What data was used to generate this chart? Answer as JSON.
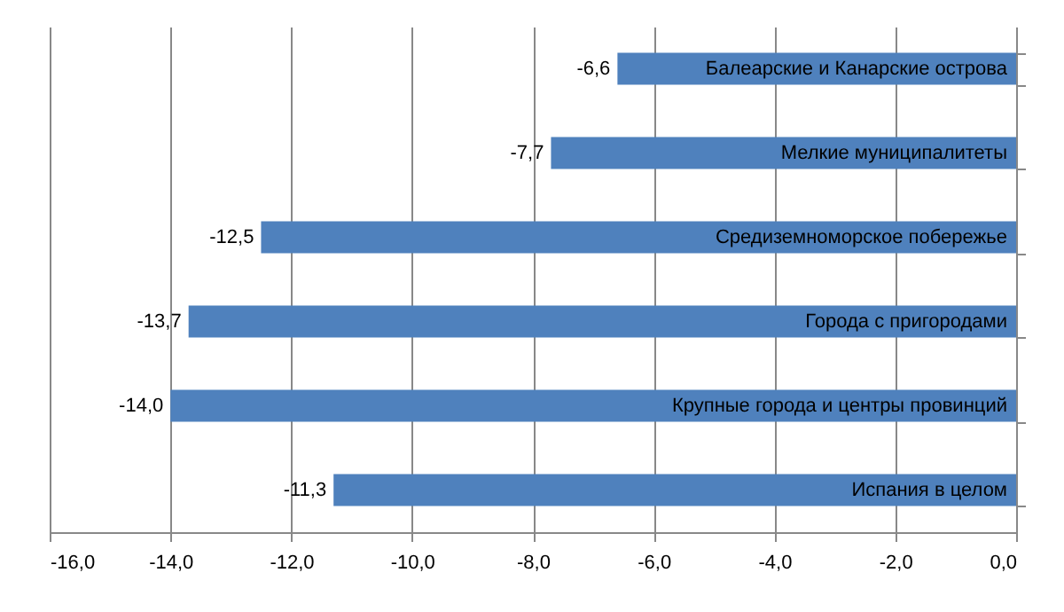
{
  "chart_data": {
    "type": "bar",
    "orientation": "horizontal",
    "categories": [
      "Балеарские и Канарские острова",
      "Мелкие  муниципалитеты",
      "Средиземноморское  побережье",
      "Города с пригородами",
      "Крупные города и центры провинций",
      "Испания в целом"
    ],
    "values": [
      -6.6,
      -7.7,
      -12.5,
      -13.7,
      -14.0,
      -11.3
    ],
    "value_labels": [
      "-6,6",
      "-7,7",
      "-12,5",
      "-13,7",
      "-14,0",
      "-11,3"
    ],
    "color": "#4f81bd",
    "xlim": [
      -16,
      0
    ],
    "xticks": [
      {
        "value": -16,
        "label": "-16,0"
      },
      {
        "value": -14,
        "label": "-14,0"
      },
      {
        "value": -12,
        "label": "-12,0"
      },
      {
        "value": -10,
        "label": "-10,0"
      },
      {
        "value": -8,
        "label": "-8,0"
      },
      {
        "value": -6,
        "label": "-6,0"
      },
      {
        "value": -4,
        "label": "-4,0"
      },
      {
        "value": -2,
        "label": "-2,0"
      },
      {
        "value": 0,
        "label": "0,0"
      }
    ],
    "grid": "x"
  }
}
